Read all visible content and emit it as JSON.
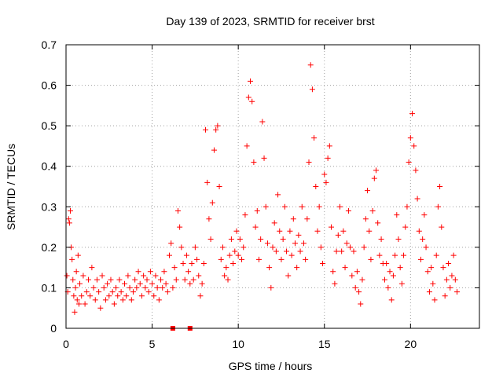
{
  "chart_data": {
    "type": "scatter",
    "title": "Day 139 of 2023, SRMTID for receiver brst",
    "xlabel": "GPS time / hours",
    "ylabel": "SRMTID / TECUs",
    "xlim": [
      0,
      24
    ],
    "ylim": [
      0,
      0.7
    ],
    "xticks": [
      {
        "value": 0,
        "label": "0"
      },
      {
        "value": 5,
        "label": "5"
      },
      {
        "value": 10,
        "label": "10"
      },
      {
        "value": 15,
        "label": "15"
      },
      {
        "value": 20,
        "label": "20"
      }
    ],
    "yticks": [
      {
        "value": 0,
        "label": "0"
      },
      {
        "value": 0.1,
        "label": "0.1"
      },
      {
        "value": 0.2,
        "label": "0.2"
      },
      {
        "value": 0.3,
        "label": "0.3"
      },
      {
        "value": 0.4,
        "label": "0.4"
      },
      {
        "value": 0.5,
        "label": "0.5"
      },
      {
        "value": 0.6,
        "label": "0.6"
      },
      {
        "value": 0.7,
        "label": "0.7"
      }
    ],
    "grid": true,
    "marker": "plus",
    "color": "#ff0000",
    "series": [
      {
        "name": "SRMTID",
        "points": [
          [
            0.05,
            0.13
          ],
          [
            0.1,
            0.09
          ],
          [
            0.15,
            0.27
          ],
          [
            0.2,
            0.26
          ],
          [
            0.25,
            0.29
          ],
          [
            0.3,
            0.2
          ],
          [
            0.35,
            0.17
          ],
          [
            0.4,
            0.12
          ],
          [
            0.45,
            0.08
          ],
          [
            0.5,
            0.04
          ],
          [
            0.55,
            0.1
          ],
          [
            0.6,
            0.14
          ],
          [
            0.65,
            0.07
          ],
          [
            0.7,
            0.18
          ],
          [
            0.75,
            0.06
          ],
          [
            0.8,
            0.11
          ],
          [
            0.9,
            0.08
          ],
          [
            1.0,
            0.13
          ],
          [
            1.1,
            0.06
          ],
          [
            1.2,
            0.09
          ],
          [
            1.3,
            0.12
          ],
          [
            1.4,
            0.08
          ],
          [
            1.5,
            0.15
          ],
          [
            1.6,
            0.1
          ],
          [
            1.7,
            0.07
          ],
          [
            1.8,
            0.12
          ],
          [
            1.9,
            0.09
          ],
          [
            2.0,
            0.05
          ],
          [
            2.1,
            0.13
          ],
          [
            2.2,
            0.1
          ],
          [
            2.3,
            0.07
          ],
          [
            2.4,
            0.11
          ],
          [
            2.5,
            0.08
          ],
          [
            2.6,
            0.12
          ],
          [
            2.7,
            0.09
          ],
          [
            2.8,
            0.06
          ],
          [
            2.9,
            0.1
          ],
          [
            3.0,
            0.08
          ],
          [
            3.1,
            0.12
          ],
          [
            3.2,
            0.09
          ],
          [
            3.3,
            0.07
          ],
          [
            3.4,
            0.11
          ],
          [
            3.5,
            0.08
          ],
          [
            3.6,
            0.13
          ],
          [
            3.7,
            0.1
          ],
          [
            3.8,
            0.07
          ],
          [
            3.9,
            0.09
          ],
          [
            4.0,
            0.12
          ],
          [
            4.1,
            0.1
          ],
          [
            4.2,
            0.14
          ],
          [
            4.3,
            0.11
          ],
          [
            4.4,
            0.08
          ],
          [
            4.5,
            0.13
          ],
          [
            4.6,
            0.1
          ],
          [
            4.7,
            0.12
          ],
          [
            4.8,
            0.09
          ],
          [
            4.9,
            0.14
          ],
          [
            5.0,
            0.11
          ],
          [
            5.1,
            0.08
          ],
          [
            5.2,
            0.13
          ],
          [
            5.3,
            0.1
          ],
          [
            5.4,
            0.07
          ],
          [
            5.5,
            0.12
          ],
          [
            5.6,
            0.1
          ],
          [
            5.7,
            0.14
          ],
          [
            5.8,
            0.11
          ],
          [
            5.9,
            0.09
          ],
          [
            6.0,
            0.18
          ],
          [
            6.1,
            0.21
          ],
          [
            6.2,
            0.1
          ],
          [
            6.3,
            0.15
          ],
          [
            6.4,
            0.12
          ],
          [
            6.5,
            0.29
          ],
          [
            6.6,
            0.25
          ],
          [
            6.7,
            0.2
          ],
          [
            6.8,
            0.16
          ],
          [
            6.9,
            0.12
          ],
          [
            7.0,
            0.18
          ],
          [
            7.1,
            0.14
          ],
          [
            7.2,
            0.11
          ],
          [
            7.3,
            0.16
          ],
          [
            7.4,
            0.12
          ],
          [
            7.5,
            0.2
          ],
          [
            7.6,
            0.17
          ],
          [
            7.7,
            0.13
          ],
          [
            7.8,
            0.08
          ],
          [
            7.9,
            0.11
          ],
          [
            8.0,
            0.16
          ],
          [
            8.1,
            0.49
          ],
          [
            8.2,
            0.36
          ],
          [
            8.3,
            0.27
          ],
          [
            8.4,
            0.22
          ],
          [
            8.5,
            0.31
          ],
          [
            8.6,
            0.44
          ],
          [
            8.7,
            0.49
          ],
          [
            8.8,
            0.5
          ],
          [
            8.9,
            0.35
          ],
          [
            9.0,
            0.17
          ],
          [
            9.1,
            0.2
          ],
          [
            9.2,
            0.13
          ],
          [
            9.3,
            0.15
          ],
          [
            9.4,
            0.12
          ],
          [
            9.5,
            0.18
          ],
          [
            9.6,
            0.22
          ],
          [
            9.7,
            0.16
          ],
          [
            9.8,
            0.19
          ],
          [
            9.9,
            0.24
          ],
          [
            10.0,
            0.18
          ],
          [
            10.1,
            0.22
          ],
          [
            10.2,
            0.17
          ],
          [
            10.3,
            0.2
          ],
          [
            10.4,
            0.28
          ],
          [
            10.5,
            0.45
          ],
          [
            10.6,
            0.57
          ],
          [
            10.7,
            0.61
          ],
          [
            10.8,
            0.56
          ],
          [
            10.9,
            0.41
          ],
          [
            11.0,
            0.25
          ],
          [
            11.1,
            0.29
          ],
          [
            11.2,
            0.17
          ],
          [
            11.3,
            0.22
          ],
          [
            11.4,
            0.51
          ],
          [
            11.5,
            0.42
          ],
          [
            11.6,
            0.3
          ],
          [
            11.7,
            0.21
          ],
          [
            11.8,
            0.15
          ],
          [
            11.9,
            0.1
          ],
          [
            12.0,
            0.2
          ],
          [
            12.1,
            0.26
          ],
          [
            12.2,
            0.19
          ],
          [
            12.3,
            0.33
          ],
          [
            12.4,
            0.24
          ],
          [
            12.5,
            0.17
          ],
          [
            12.6,
            0.22
          ],
          [
            12.7,
            0.3
          ],
          [
            12.8,
            0.19
          ],
          [
            12.9,
            0.13
          ],
          [
            13.0,
            0.24
          ],
          [
            13.1,
            0.18
          ],
          [
            13.2,
            0.27
          ],
          [
            13.3,
            0.21
          ],
          [
            13.4,
            0.15
          ],
          [
            13.5,
            0.23
          ],
          [
            13.6,
            0.19
          ],
          [
            13.7,
            0.3
          ],
          [
            13.8,
            0.21
          ],
          [
            13.9,
            0.17
          ],
          [
            14.0,
            0.27
          ],
          [
            14.1,
            0.41
          ],
          [
            14.2,
            0.65
          ],
          [
            14.3,
            0.59
          ],
          [
            14.4,
            0.47
          ],
          [
            14.5,
            0.35
          ],
          [
            14.6,
            0.24
          ],
          [
            14.7,
            0.3
          ],
          [
            14.8,
            0.2
          ],
          [
            14.9,
            0.16
          ],
          [
            15.0,
            0.38
          ],
          [
            15.1,
            0.36
          ],
          [
            15.2,
            0.42
          ],
          [
            15.3,
            0.45
          ],
          [
            15.4,
            0.25
          ],
          [
            15.5,
            0.14
          ],
          [
            15.6,
            0.11
          ],
          [
            15.7,
            0.19
          ],
          [
            15.8,
            0.23
          ],
          [
            15.9,
            0.3
          ],
          [
            16.0,
            0.19
          ],
          [
            16.1,
            0.24
          ],
          [
            16.2,
            0.15
          ],
          [
            16.3,
            0.21
          ],
          [
            16.4,
            0.29
          ],
          [
            16.5,
            0.2
          ],
          [
            16.6,
            0.13
          ],
          [
            16.7,
            0.19
          ],
          [
            16.8,
            0.1
          ],
          [
            16.9,
            0.14
          ],
          [
            17.0,
            0.09
          ],
          [
            17.1,
            0.06
          ],
          [
            17.2,
            0.12
          ],
          [
            17.3,
            0.2
          ],
          [
            17.4,
            0.27
          ],
          [
            17.5,
            0.34
          ],
          [
            17.6,
            0.24
          ],
          [
            17.7,
            0.17
          ],
          [
            17.8,
            0.29
          ],
          [
            17.9,
            0.37
          ],
          [
            18.0,
            0.39
          ],
          [
            18.1,
            0.26
          ],
          [
            18.2,
            0.18
          ],
          [
            18.3,
            0.22
          ],
          [
            18.4,
            0.16
          ],
          [
            18.5,
            0.12
          ],
          [
            18.6,
            0.16
          ],
          [
            18.7,
            0.1
          ],
          [
            18.8,
            0.14
          ],
          [
            18.9,
            0.07
          ],
          [
            19.0,
            0.13
          ],
          [
            19.1,
            0.18
          ],
          [
            19.2,
            0.28
          ],
          [
            19.3,
            0.22
          ],
          [
            19.4,
            0.15
          ],
          [
            19.5,
            0.11
          ],
          [
            19.6,
            0.18
          ],
          [
            19.7,
            0.25
          ],
          [
            19.8,
            0.3
          ],
          [
            19.9,
            0.41
          ],
          [
            20.0,
            0.47
          ],
          [
            20.1,
            0.53
          ],
          [
            20.2,
            0.45
          ],
          [
            20.3,
            0.39
          ],
          [
            20.4,
            0.32
          ],
          [
            20.5,
            0.24
          ],
          [
            20.6,
            0.17
          ],
          [
            20.7,
            0.22
          ],
          [
            20.8,
            0.28
          ],
          [
            20.9,
            0.2
          ],
          [
            21.0,
            0.14
          ],
          [
            21.1,
            0.09
          ],
          [
            21.2,
            0.15
          ],
          [
            21.3,
            0.11
          ],
          [
            21.4,
            0.07
          ],
          [
            21.5,
            0.18
          ],
          [
            21.6,
            0.3
          ],
          [
            21.7,
            0.35
          ],
          [
            21.8,
            0.25
          ],
          [
            21.9,
            0.15
          ],
          [
            22.0,
            0.08
          ],
          [
            22.1,
            0.12
          ],
          [
            22.2,
            0.16
          ],
          [
            22.3,
            0.1
          ],
          [
            22.4,
            0.13
          ],
          [
            22.5,
            0.18
          ],
          [
            22.6,
            0.12
          ],
          [
            22.7,
            0.09
          ]
        ]
      },
      {
        "name": "zero-markers",
        "marker": "square",
        "points": [
          [
            6.2,
            0.0
          ],
          [
            7.2,
            0.0
          ]
        ]
      }
    ]
  }
}
